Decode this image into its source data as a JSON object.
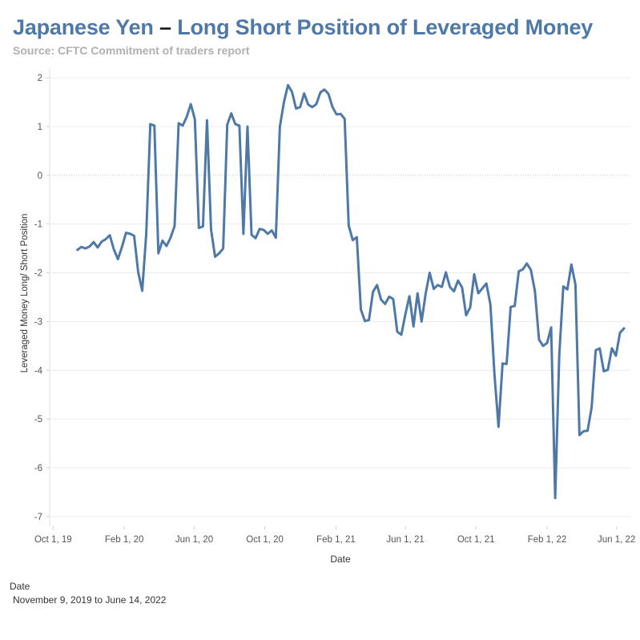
{
  "title_part1": "Japanese Yen",
  "title_dash": "–",
  "title_part2": "Long Short Position of Leveraged Money",
  "subtitle": "Source: CFTC Commitment of traders report",
  "filter": {
    "label": "Date",
    "value": "November 9, 2019 to June 14, 2022"
  },
  "colors": {
    "line": "#4e79a7",
    "title": "#4e79a7",
    "grid": "#ececec",
    "zero": "#c8c8c8"
  },
  "chart_data": {
    "type": "line",
    "title": "Japanese Yen – Long Short Position of Leveraged Money",
    "xlabel": "Date",
    "ylabel": "Leveraged Money Long/ Short Position",
    "ylim": [
      -7.2,
      2.2
    ],
    "yticks": [
      2,
      1,
      0,
      -1,
      -2,
      -3,
      -4,
      -5,
      -6,
      -7
    ],
    "ytick_labels": [
      "2",
      "1",
      "0",
      "-1",
      "-2",
      "-3",
      "-4",
      "-5",
      "-6",
      "-7"
    ],
    "x_start": "2019-09-25",
    "x_end": "2022-06-25",
    "xticks": [
      {
        "date": "2019-10-01",
        "label": "Oct 1, 19"
      },
      {
        "date": "2020-02-01",
        "label": "Feb 1, 20"
      },
      {
        "date": "2020-06-01",
        "label": "Jun 1, 20"
      },
      {
        "date": "2020-10-01",
        "label": "Oct 1, 20"
      },
      {
        "date": "2021-02-01",
        "label": "Feb 1, 21"
      },
      {
        "date": "2021-06-01",
        "label": "Jun 1, 21"
      },
      {
        "date": "2021-10-01",
        "label": "Oct 1, 21"
      },
      {
        "date": "2022-02-01",
        "label": "Feb 1, 22"
      },
      {
        "date": "2022-06-01",
        "label": "Jun 1, 22"
      }
    ],
    "series": [
      {
        "name": "Leveraged Money Long/ Short Position",
        "start_date": "2019-11-12",
        "interval_days": 7,
        "values": [
          -1.53,
          -1.47,
          -1.5,
          -1.46,
          -1.37,
          -1.48,
          -1.36,
          -1.31,
          -1.23,
          -1.52,
          -1.72,
          -1.47,
          -1.18,
          -1.2,
          -1.24,
          -1.98,
          -2.37,
          -1.2,
          1.05,
          1.02,
          -1.6,
          -1.34,
          -1.45,
          -1.28,
          -1.04,
          1.07,
          1.02,
          1.2,
          1.46,
          1.15,
          -1.08,
          -1.05,
          1.13,
          -1.11,
          -1.67,
          -1.6,
          -1.5,
          1.04,
          1.27,
          1.05,
          1.02,
          -1.2,
          1.0,
          -1.22,
          -1.29,
          -1.1,
          -1.12,
          -1.2,
          -1.13,
          -1.28,
          1.0,
          1.5,
          1.85,
          1.71,
          1.37,
          1.4,
          1.68,
          1.45,
          1.4,
          1.46,
          1.7,
          1.76,
          1.67,
          1.4,
          1.25,
          1.26,
          1.16,
          -1.03,
          -1.33,
          -1.27,
          -2.75,
          -2.99,
          -2.97,
          -2.39,
          -2.25,
          -2.55,
          -2.64,
          -2.49,
          -2.54,
          -3.21,
          -3.27,
          -2.85,
          -2.48,
          -3.1,
          -2.42,
          -3.0,
          -2.43,
          -2.0,
          -2.33,
          -2.25,
          -2.29,
          -1.99,
          -2.29,
          -2.38,
          -2.16,
          -2.3,
          -2.87,
          -2.71,
          -2.03,
          -2.42,
          -2.32,
          -2.22,
          -2.65,
          -4.08,
          -5.16,
          -3.86,
          -3.87,
          -2.7,
          -2.68,
          -1.97,
          -1.93,
          -1.81,
          -1.94,
          -2.38,
          -3.37,
          -3.5,
          -3.44,
          -3.12,
          -6.62,
          -3.7,
          -2.28,
          -2.34,
          -1.83,
          -2.24,
          -5.33,
          -5.25,
          -5.24,
          -4.76,
          -3.59,
          -3.55,
          -4.02,
          -3.99,
          -3.55,
          -3.7,
          -3.23,
          -3.14
        ]
      }
    ]
  }
}
